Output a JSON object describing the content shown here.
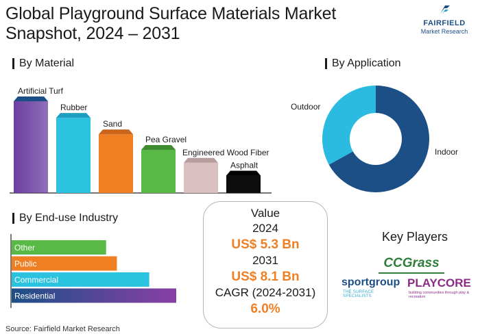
{
  "title": "Global Playground Surface Materials Market Snapshot, 2024 – 2031",
  "logo": {
    "brand": "FAIRFIELD",
    "sub": "Market Research",
    "color": "#1c4f86"
  },
  "sections": {
    "material": "By Material",
    "application": "By Application",
    "enduse": "By End-use Industry"
  },
  "value_box": {
    "heading": "Value",
    "year1": "2024",
    "value1": "US$ 5.3 Bn",
    "year2": "2031",
    "value2": "US$ 8.1 Bn",
    "cagr_label": "CAGR (2024-2031)",
    "cagr_value": "6.0%",
    "highlight_color": "#f07f23"
  },
  "key_players": {
    "title": "Key Players",
    "logos": [
      "CCGrass",
      "sportgroup",
      "PLAYCORE"
    ],
    "sportgroup_tagline": "THE SURFACE SPECIALISTS",
    "playcore_tagline": "building communities through play & recreation"
  },
  "source": "Source: Fairfield Market Research",
  "chart_data": [
    {
      "type": "bar",
      "title": "By Material",
      "categories": [
        "Artificial Turf",
        "Rubber",
        "Sand",
        "Pea Gravel",
        "Engineered Wood Fiber",
        "Asphalt"
      ],
      "values": [
        100,
        82,
        64,
        47,
        33,
        19
      ],
      "value_unit": "relative (no axis shown)",
      "colors": [
        "#6b3fa0",
        "#2bc3e0",
        "#f07f23",
        "#58b947",
        "#d9bfbf",
        "#0d0d0d"
      ],
      "top_colors": [
        "#1c4f86",
        "#1f9fc0",
        "#c9641a",
        "#3f8d31",
        "#b89d9d",
        "#000000"
      ]
    },
    {
      "type": "pie",
      "title": "By Application",
      "labels": [
        "Indoor",
        "Outdoor"
      ],
      "values": [
        67,
        33
      ],
      "value_unit": "approx. share %",
      "colors": [
        "#1c4f86",
        "#2bbbe0"
      ],
      "donut": true
    },
    {
      "type": "bar",
      "orientation": "horizontal",
      "title": "By End-use Industry",
      "categories": [
        "Other",
        "Public",
        "Commercial",
        "Residential"
      ],
      "values": [
        35,
        39,
        51,
        61
      ],
      "value_unit": "relative (no axis shown)",
      "colors": [
        "#58b947",
        "#f07f23",
        "#2bc3e0",
        "#1c4f86"
      ]
    }
  ]
}
